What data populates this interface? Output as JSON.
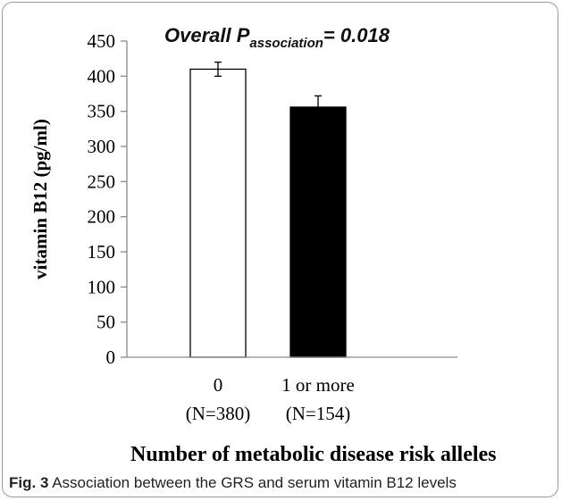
{
  "chart_data": {
    "type": "bar",
    "categories": [
      "0",
      "1 or more"
    ],
    "category_sublabels": [
      "(N=380)",
      "(N=154)"
    ],
    "values": [
      410,
      356
    ],
    "error_bars": [
      10,
      16
    ],
    "bar_colors": [
      "#ffffff",
      "#000000"
    ],
    "ylim": [
      0,
      450
    ],
    "yticks": [
      0,
      50,
      100,
      150,
      200,
      250,
      300,
      350,
      400,
      450
    ],
    "ylabel": "vitamin B12 (pg/ml)",
    "xlabel": "Number of metabolic disease risk alleles",
    "annotation": {
      "prefix": "Overall P",
      "subscript": "association",
      "suffix": "= 0.018"
    }
  },
  "caption": {
    "label": "Fig. 3",
    "text": "Association between the GRS and serum vitamin B12 levels"
  }
}
